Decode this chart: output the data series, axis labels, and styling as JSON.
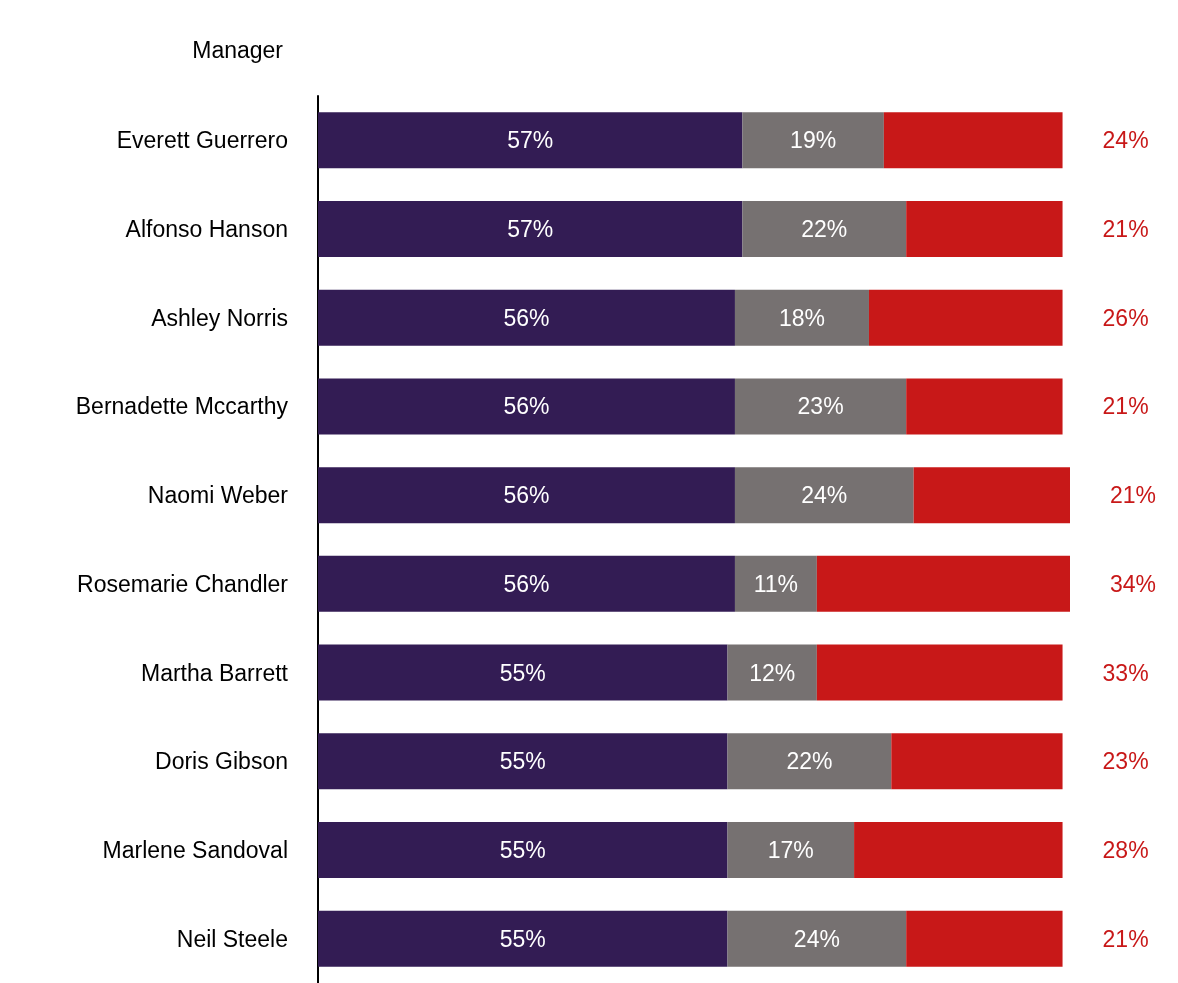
{
  "chart_data": {
    "type": "bar",
    "orientation": "horizontal",
    "stacked": true,
    "ylabel": "Manager",
    "categories": [
      "Everett Guerrero",
      "Alfonso Hanson",
      "Ashley Norris",
      "Bernadette Mccarthy",
      "Naomi Weber",
      "Rosemarie Chandler",
      "Martha Barrett",
      "Doris Gibson",
      "Marlene Sandoval",
      "Neil Steele"
    ],
    "series": [
      {
        "color": "#331c54",
        "values": [
          57,
          57,
          56,
          56,
          56,
          56,
          55,
          55,
          55,
          55
        ],
        "value_labels": [
          "57%",
          "57%",
          "56%",
          "56%",
          "56%",
          "56%",
          "55%",
          "55%",
          "55%",
          "55%"
        ]
      },
      {
        "color": "#767171",
        "values": [
          19,
          22,
          18,
          23,
          24,
          11,
          12,
          22,
          17,
          24
        ],
        "value_labels": [
          "19%",
          "22%",
          "18%",
          "23%",
          "24%",
          "11%",
          "12%",
          "22%",
          "17%",
          "24%"
        ]
      },
      {
        "color": "#c81818",
        "values": [
          24,
          21,
          26,
          21,
          21,
          34,
          33,
          23,
          28,
          21
        ],
        "value_labels": [
          "24%",
          "21%",
          "26%",
          "21%",
          "21%",
          "34%",
          "33%",
          "23%",
          "28%",
          "21%"
        ]
      }
    ],
    "xlim": [
      0,
      101
    ],
    "tick_labels": "y"
  }
}
